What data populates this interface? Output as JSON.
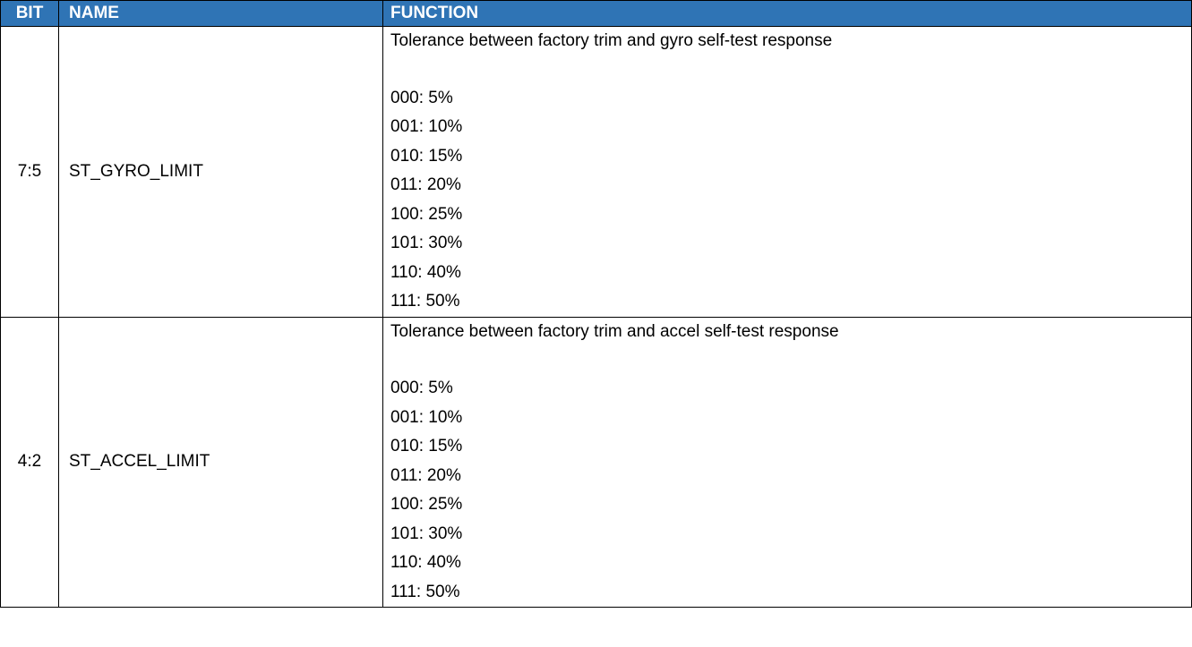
{
  "header": {
    "bit": "BIT",
    "name": "NAME",
    "function": "FUNCTION"
  },
  "colors": {
    "header_background": "#2f74b5",
    "header_text": "#ffffff"
  },
  "rows": [
    {
      "bit": "7:5",
      "name": "ST_GYRO_LIMIT",
      "description": "Tolerance between factory trim and gyro self-test response",
      "options": [
        "000: 5%",
        "001: 10%",
        "010: 15%",
        "011: 20%",
        "100: 25%",
        "101: 30%",
        "110: 40%",
        "111: 50%"
      ]
    },
    {
      "bit": "4:2",
      "name": "ST_ACCEL_LIMIT",
      "description": "Tolerance between factory trim and accel self-test response",
      "options": [
        "000: 5%",
        "001: 10%",
        "010: 15%",
        "011: 20%",
        "100: 25%",
        "101: 30%",
        "110: 40%",
        "111: 50%"
      ]
    }
  ]
}
